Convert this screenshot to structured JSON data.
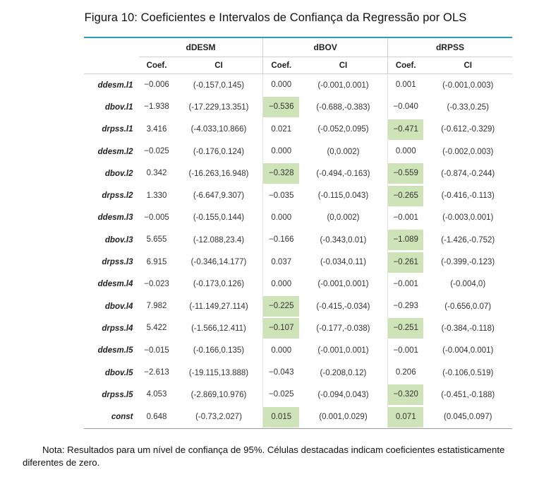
{
  "title": "Figura 10: Coeficientes e Intervalos de Confiança da Regressão por OLS",
  "groups": [
    "dDESM",
    "dBOV",
    "dRPSS"
  ],
  "subheaders": {
    "coef": "Coef.",
    "ci": "CI"
  },
  "rows": [
    {
      "label": "ddesm.l1",
      "cells": [
        {
          "coef": "−0.006",
          "ci": "(-0.157,0.145)",
          "hl": false
        },
        {
          "coef": "0.000",
          "ci": "(-0.001,0.001)",
          "hl": false
        },
        {
          "coef": "0.001",
          "ci": "(-0.001,0.003)",
          "hl": false
        }
      ]
    },
    {
      "label": "dbov.l1",
      "cells": [
        {
          "coef": "−1.938",
          "ci": "(-17.229,13.351)",
          "hl": false
        },
        {
          "coef": "−0.536",
          "ci": "(-0.688,-0.383)",
          "hl": true
        },
        {
          "coef": "−0.040",
          "ci": "(-0.33,0.25)",
          "hl": false
        }
      ]
    },
    {
      "label": "drpss.l1",
      "cells": [
        {
          "coef": "3.416",
          "ci": "(-4.033,10.866)",
          "hl": false
        },
        {
          "coef": "0.021",
          "ci": "(-0.052,0.095)",
          "hl": false
        },
        {
          "coef": "−0.471",
          "ci": "(-0.612,-0.329)",
          "hl": true
        }
      ]
    },
    {
      "label": "ddesm.l2",
      "cells": [
        {
          "coef": "−0.025",
          "ci": "(-0.176,0.124)",
          "hl": false
        },
        {
          "coef": "0.000",
          "ci": "(0,0.002)",
          "hl": false
        },
        {
          "coef": "0.000",
          "ci": "(-0.002,0.003)",
          "hl": false
        }
      ]
    },
    {
      "label": "dbov.l2",
      "cells": [
        {
          "coef": "0.342",
          "ci": "(-16.263,16.948)",
          "hl": false
        },
        {
          "coef": "−0.328",
          "ci": "(-0.494,-0.163)",
          "hl": true
        },
        {
          "coef": "−0.559",
          "ci": "(-0.874,-0.244)",
          "hl": true
        }
      ]
    },
    {
      "label": "drpss.l2",
      "cells": [
        {
          "coef": "1.330",
          "ci": "(-6.647,9.307)",
          "hl": false
        },
        {
          "coef": "−0.035",
          "ci": "(-0.115,0.043)",
          "hl": false
        },
        {
          "coef": "−0.265",
          "ci": "(-0.416,-0.113)",
          "hl": true
        }
      ]
    },
    {
      "label": "ddesm.l3",
      "cells": [
        {
          "coef": "−0.005",
          "ci": "(-0.155,0.144)",
          "hl": false
        },
        {
          "coef": "0.000",
          "ci": "(0,0.002)",
          "hl": false
        },
        {
          "coef": "−0.001",
          "ci": "(-0.003,0.001)",
          "hl": false
        }
      ]
    },
    {
      "label": "dbov.l3",
      "cells": [
        {
          "coef": "5.655",
          "ci": "(-12.088,23.4)",
          "hl": false
        },
        {
          "coef": "−0.166",
          "ci": "(-0.343,0.01)",
          "hl": false
        },
        {
          "coef": "−1.089",
          "ci": "(-1.426,-0.752)",
          "hl": true
        }
      ]
    },
    {
      "label": "drpss.l3",
      "cells": [
        {
          "coef": "6.915",
          "ci": "(-0.346,14.177)",
          "hl": false
        },
        {
          "coef": "0.037",
          "ci": "(-0.034,0.11)",
          "hl": false
        },
        {
          "coef": "−0.261",
          "ci": "(-0.399,-0.123)",
          "hl": true
        }
      ]
    },
    {
      "label": "ddesm.l4",
      "cells": [
        {
          "coef": "−0.023",
          "ci": "(-0.173,0.126)",
          "hl": false
        },
        {
          "coef": "0.000",
          "ci": "(-0.001,0.001)",
          "hl": false
        },
        {
          "coef": "−0.001",
          "ci": "(-0.004,0)",
          "hl": false
        }
      ]
    },
    {
      "label": "dbov.l4",
      "cells": [
        {
          "coef": "7.982",
          "ci": "(-11.149,27.114)",
          "hl": false
        },
        {
          "coef": "−0.225",
          "ci": "(-0.415,-0.034)",
          "hl": true
        },
        {
          "coef": "−0.293",
          "ci": "(-0.656,0.07)",
          "hl": false
        }
      ]
    },
    {
      "label": "drpss.l4",
      "cells": [
        {
          "coef": "5.422",
          "ci": "(-1.566,12.411)",
          "hl": false
        },
        {
          "coef": "−0.107",
          "ci": "(-0.177,-0.038)",
          "hl": true
        },
        {
          "coef": "−0.251",
          "ci": "(-0.384,-0.118)",
          "hl": true
        }
      ]
    },
    {
      "label": "ddesm.l5",
      "cells": [
        {
          "coef": "−0.015",
          "ci": "(-0.166,0.135)",
          "hl": false
        },
        {
          "coef": "0.000",
          "ci": "(-0.001,0.001)",
          "hl": false
        },
        {
          "coef": "−0.001",
          "ci": "(-0.004,0.001)",
          "hl": false
        }
      ]
    },
    {
      "label": "dbov.l5",
      "cells": [
        {
          "coef": "−2.613",
          "ci": "(-19.115,13.888)",
          "hl": false
        },
        {
          "coef": "−0.043",
          "ci": "(-0.208,0.12)",
          "hl": false
        },
        {
          "coef": "0.206",
          "ci": "(-0.106,0.519)",
          "hl": false
        }
      ]
    },
    {
      "label": "drpss.l5",
      "cells": [
        {
          "coef": "4.053",
          "ci": "(-2.869,10.976)",
          "hl": false
        },
        {
          "coef": "−0.025",
          "ci": "(-0.094,0.043)",
          "hl": false
        },
        {
          "coef": "−0.320",
          "ci": "(-0.451,-0.188)",
          "hl": true
        }
      ]
    },
    {
      "label": "const",
      "cells": [
        {
          "coef": "0.648",
          "ci": "(-0.73,2.027)",
          "hl": false
        },
        {
          "coef": "0.015",
          "ci": "(0.001,0.029)",
          "hl": true
        },
        {
          "coef": "0.071",
          "ci": "(0.045,0.097)",
          "hl": true
        }
      ]
    }
  ],
  "colors": {
    "highlight": "#cfe3b8",
    "top_rule": "#2d9cba"
  },
  "note": "Nota: Resultados para um nível de confiança de 95%. Células destacadas indicam coeficientes estatisticamente diferentes de zero."
}
